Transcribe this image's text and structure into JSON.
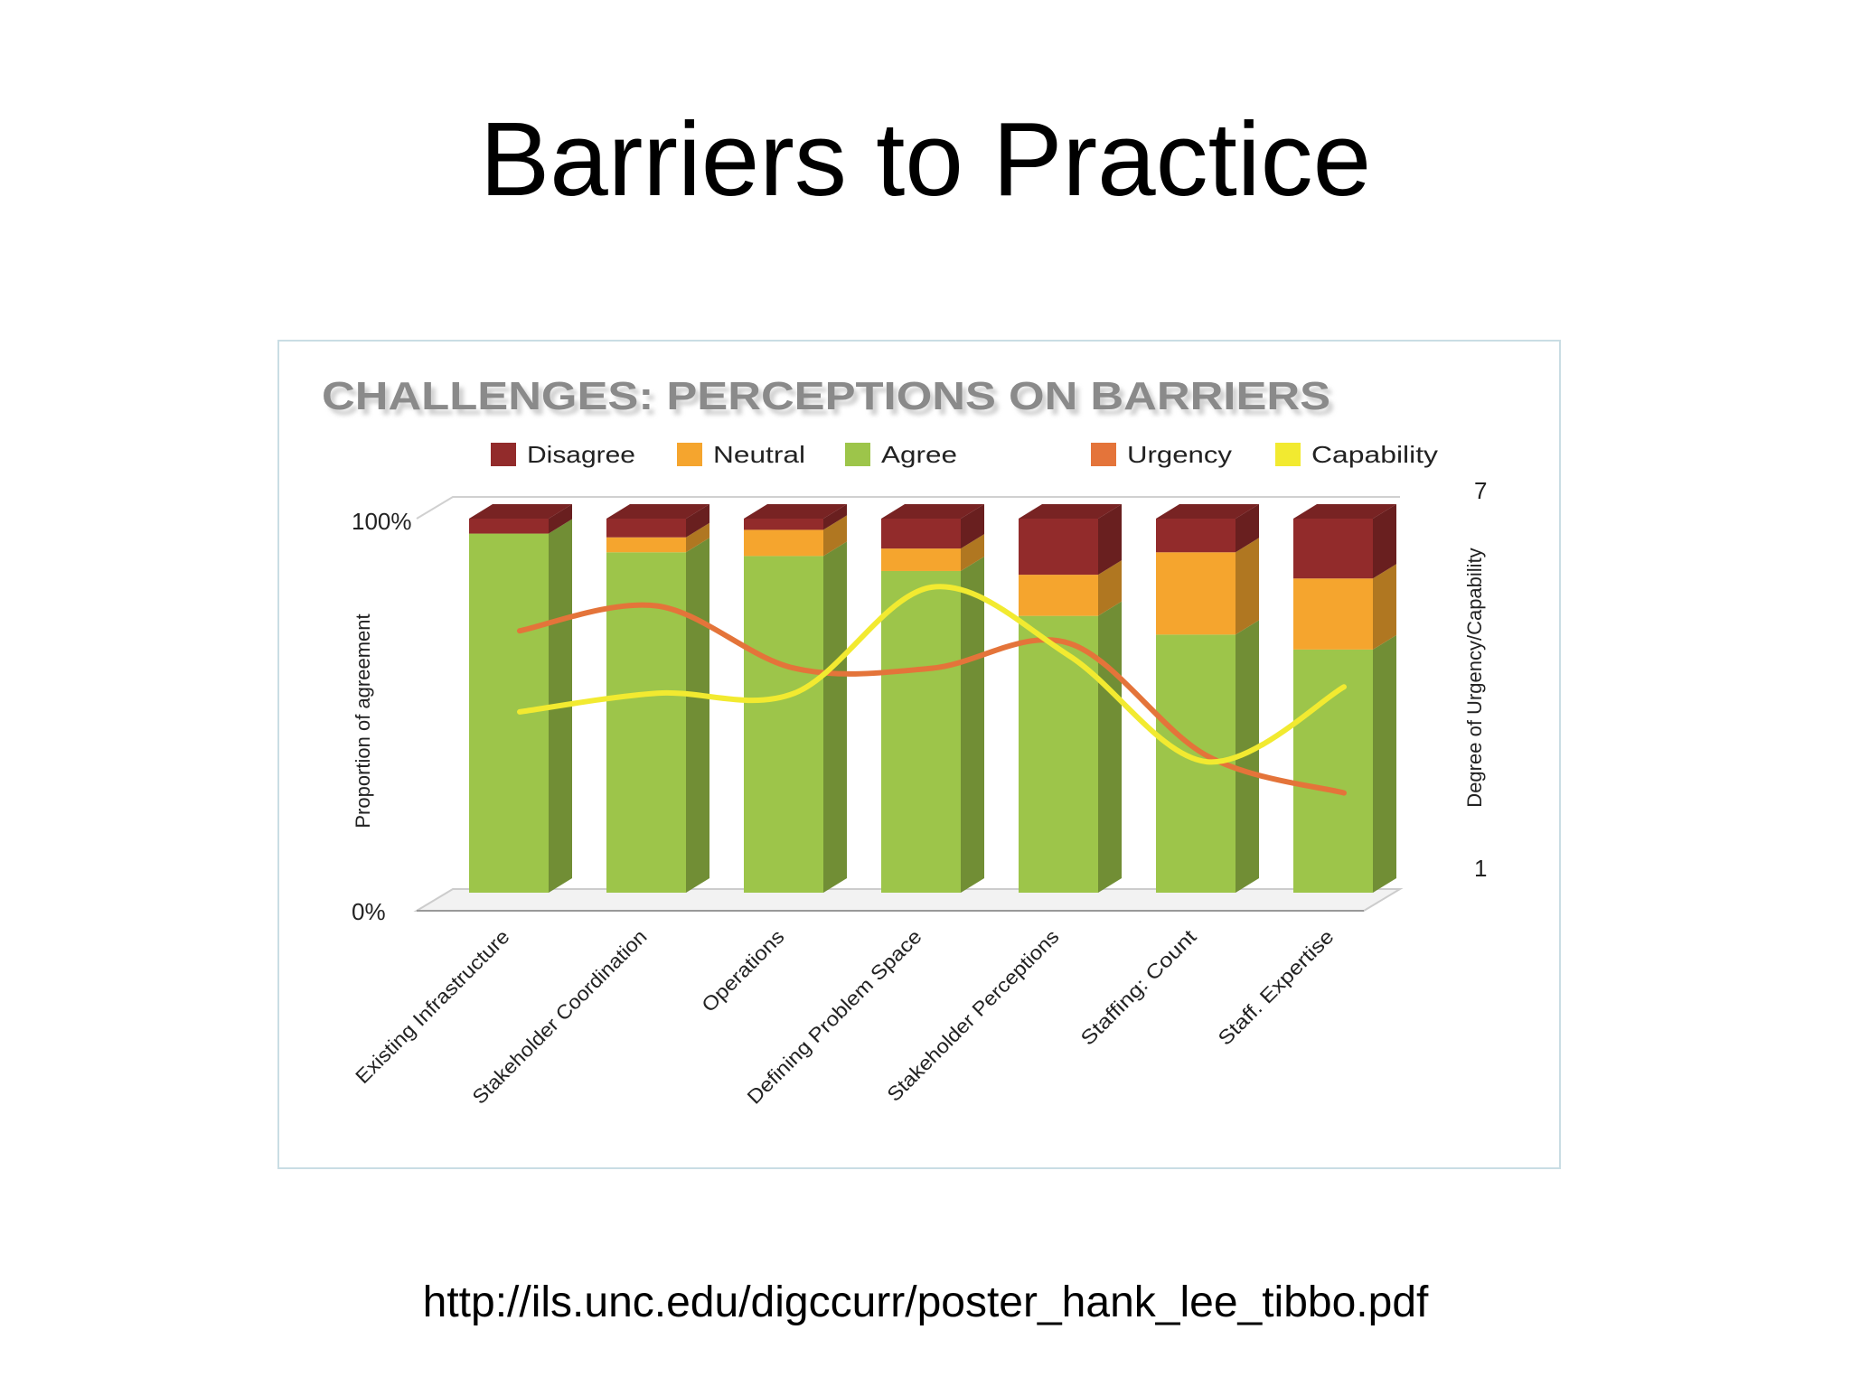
{
  "slide": {
    "title": "Barriers to Practice",
    "source_url": "http://ils.unc.edu/digccurr/poster_hank_lee_tibbo.pdf"
  },
  "colors": {
    "disagree": "#922b2b",
    "neutral": "#f5a52e",
    "agree": "#9dc54a",
    "urgency": "#e4743a",
    "capability": "#f2ea30"
  },
  "chart_data": {
    "type": "bar",
    "stacked": true,
    "title": "CHALLENGES: PERCEPTIONS ON BARRIERS",
    "ylabel": "Proportion of agreement",
    "y2label": "Degree of Urgency/Capability",
    "y_ticks": [
      "100%",
      "0%"
    ],
    "y2_ticks": [
      "7",
      "1"
    ],
    "ylim": [
      0,
      100
    ],
    "y2lim": [
      1,
      7
    ],
    "legend_position": "top",
    "categories": [
      "Existing Infrastructure",
      "Stakeholder Coordination",
      "Operations",
      "Defining Problem Space",
      "Stakeholder Perceptions",
      "Staffing: Count",
      "Staff. Expertise"
    ],
    "series": [
      {
        "name": "Agree",
        "key": "agree",
        "axis": "left",
        "values": [
          96,
          91,
          90,
          86,
          74,
          69,
          65
        ]
      },
      {
        "name": "Neutral",
        "key": "neutral",
        "axis": "left",
        "values": [
          0,
          4,
          7,
          6,
          11,
          22,
          19
        ]
      },
      {
        "name": "Disagree",
        "key": "disagree",
        "axis": "left",
        "values": [
          4,
          5,
          3,
          8,
          15,
          9,
          16
        ]
      },
      {
        "name": "Urgency",
        "key": "urgency",
        "axis": "right",
        "type": "line",
        "values": [
          5.2,
          5.6,
          4.6,
          4.6,
          5.0,
          3.2,
          2.6
        ]
      },
      {
        "name": "Capability",
        "key": "capability",
        "axis": "right",
        "type": "line",
        "values": [
          3.9,
          4.2,
          4.2,
          5.9,
          4.8,
          3.1,
          4.3
        ]
      }
    ]
  }
}
